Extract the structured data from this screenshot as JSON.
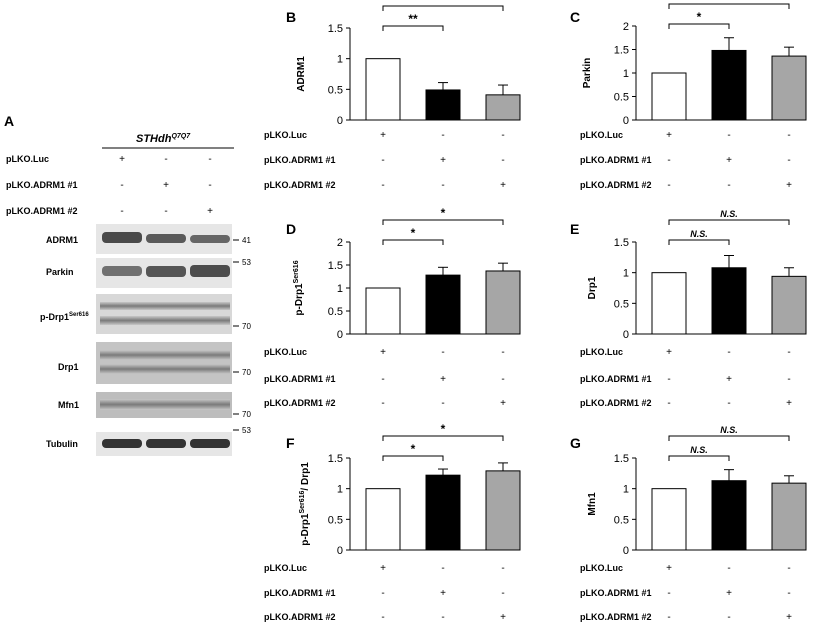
{
  "blot": {
    "panel_letter": "A",
    "cell_line": "STHdh",
    "cell_line_sup": "Q7Q7",
    "conditions": [
      {
        "label": "pLKO.Luc",
        "signs": [
          "+",
          "-",
          "-"
        ]
      },
      {
        "label": "pLKO.ADRM1 #1",
        "signs": [
          "-",
          "+",
          "-"
        ]
      },
      {
        "label": "pLKO.ADRM1 #2",
        "signs": [
          "-",
          "-",
          "+"
        ]
      }
    ],
    "bands": [
      {
        "name": "ADRM1",
        "sup": "",
        "mw": "41"
      },
      {
        "name": "Parkin",
        "sup": "",
        "mw": "53"
      },
      {
        "name": "p-Drp1",
        "sup": "Ser616",
        "mw": "70"
      },
      {
        "name": "Drp1",
        "sup": "",
        "mw": "70"
      },
      {
        "name": "Mfn1",
        "sup": "",
        "mw": "70"
      },
      {
        "name": "Tubulin",
        "sup": "",
        "mw": "53"
      }
    ]
  },
  "condition_labels": [
    "pLKO.Luc",
    "pLKO.ADRM1 #1",
    "pLKO.ADRM1 #2"
  ],
  "condition_signs": [
    [
      "+",
      "-",
      "-"
    ],
    [
      "-",
      "+",
      "-"
    ],
    [
      "-",
      "-",
      "+"
    ]
  ],
  "colors": {
    "luc": "#ffffff",
    "adrm1_1": "#000000",
    "adrm1_2": "#a6a6a6"
  },
  "chart_data": [
    {
      "panel": "B",
      "type": "bar",
      "ylabel": "ADRM1",
      "ylabel_sup": "",
      "ylabel_suffix": "",
      "ylim": [
        0,
        1.5
      ],
      "yticks": [
        "0",
        "0.5",
        "1",
        "1.5"
      ],
      "values": [
        1.0,
        0.49,
        0.41
      ],
      "errors": [
        0.01,
        0.12,
        0.16
      ],
      "sig": [
        {
          "from": 0,
          "to": 1,
          "label": "**"
        },
        {
          "from": 0,
          "to": 2,
          "label": "**"
        }
      ]
    },
    {
      "panel": "C",
      "type": "bar",
      "ylabel": "Parkin",
      "ylabel_sup": "",
      "ylabel_suffix": "",
      "ylim": [
        0,
        2
      ],
      "yticks": [
        "0",
        "0.5",
        "1",
        "1.5",
        "2"
      ],
      "values": [
        1.0,
        1.48,
        1.36
      ],
      "errors": [
        0.01,
        0.27,
        0.19
      ],
      "sig": [
        {
          "from": 0,
          "to": 1,
          "label": "*"
        },
        {
          "from": 0,
          "to": 2,
          "label": "*"
        }
      ]
    },
    {
      "panel": "D",
      "type": "bar",
      "ylabel": "p-Drp1",
      "ylabel_sup": "Ser616",
      "ylabel_suffix": "",
      "ylim": [
        0,
        2
      ],
      "yticks": [
        "0",
        "0.5",
        "1",
        "1.5",
        "2"
      ],
      "values": [
        1.0,
        1.28,
        1.37
      ],
      "errors": [
        0.01,
        0.17,
        0.17
      ],
      "sig": [
        {
          "from": 0,
          "to": 1,
          "label": "*"
        },
        {
          "from": 0,
          "to": 2,
          "label": "*"
        }
      ]
    },
    {
      "panel": "E",
      "type": "bar",
      "ylabel": "Drp1",
      "ylabel_sup": "",
      "ylabel_suffix": "",
      "ylim": [
        0,
        1.5
      ],
      "yticks": [
        "0",
        "0.5",
        "1",
        "1.5"
      ],
      "values": [
        1.0,
        1.08,
        0.94
      ],
      "errors": [
        0.01,
        0.2,
        0.14
      ],
      "sig": [
        {
          "from": 0,
          "to": 1,
          "label": "N.S."
        },
        {
          "from": 0,
          "to": 2,
          "label": "N.S."
        }
      ]
    },
    {
      "panel": "F",
      "type": "bar",
      "ylabel": "p-Drp1",
      "ylabel_sup": "Ser616",
      "ylabel_suffix": "/ Drp1",
      "ylim": [
        0,
        1.5
      ],
      "yticks": [
        "0",
        "0.5",
        "1",
        "1.5"
      ],
      "values": [
        1.0,
        1.22,
        1.29
      ],
      "errors": [
        0.01,
        0.1,
        0.13
      ],
      "sig": [
        {
          "from": 0,
          "to": 1,
          "label": "*"
        },
        {
          "from": 0,
          "to": 2,
          "label": "*"
        }
      ]
    },
    {
      "panel": "G",
      "type": "bar",
      "ylabel": "Mfn1",
      "ylabel_sup": "",
      "ylabel_suffix": "",
      "ylim": [
        0,
        1.5
      ],
      "yticks": [
        "0",
        "0.5",
        "1",
        "1.5"
      ],
      "values": [
        1.0,
        1.13,
        1.09
      ],
      "errors": [
        0.01,
        0.18,
        0.12
      ],
      "sig": [
        {
          "from": 0,
          "to": 1,
          "label": "N.S."
        },
        {
          "from": 0,
          "to": 2,
          "label": "N.S."
        }
      ]
    }
  ]
}
